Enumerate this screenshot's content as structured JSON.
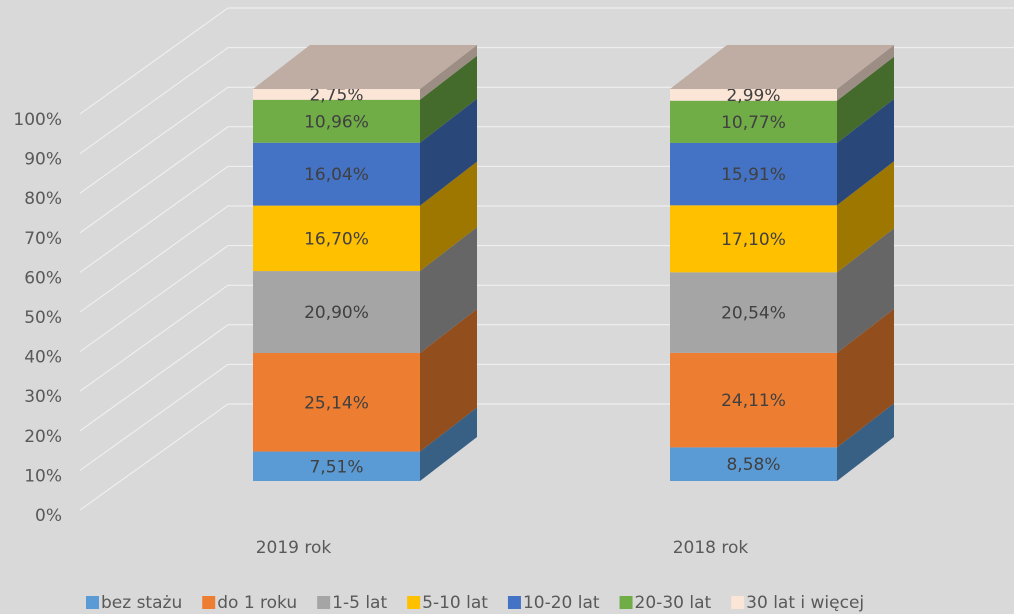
{
  "chart_data": {
    "type": "bar3d_stacked",
    "categories": [
      "2019 rok",
      "2018 rok"
    ],
    "series": [
      {
        "name": "bez stażu",
        "color": "#5b9bd5",
        "values": [
          7.51,
          8.58
        ],
        "value_labels": [
          "7,51%",
          "8,58%"
        ]
      },
      {
        "name": "do 1 roku",
        "color": "#ed7d31",
        "values": [
          25.14,
          24.11
        ],
        "value_labels": [
          "25,14%",
          "24,11%"
        ]
      },
      {
        "name": "1-5 lat",
        "color": "#a5a5a5",
        "values": [
          20.9,
          20.54
        ],
        "value_labels": [
          "20,90%",
          "20,54%"
        ]
      },
      {
        "name": "5-10 lat",
        "color": "#ffc000",
        "values": [
          16.7,
          17.1
        ],
        "value_labels": [
          "16,70%",
          "17,10%"
        ]
      },
      {
        "name": "10-20 lat",
        "color": "#4472c4",
        "values": [
          16.04,
          15.91
        ],
        "value_labels": [
          "16,04%",
          "15,91%"
        ]
      },
      {
        "name": "20-30 lat",
        "color": "#70ad47",
        "values": [
          10.96,
          10.77
        ],
        "value_labels": [
          "10,96%",
          "10,77%"
        ]
      },
      {
        "name": "30 lat i więcej",
        "color": "#fbe5d6",
        "values": [
          2.75,
          2.99
        ],
        "value_labels": [
          "2,75%",
          "2,99%"
        ]
      }
    ],
    "ylim": [
      0,
      100
    ],
    "yticks": [
      {
        "value": 0,
        "label": "0%"
      },
      {
        "value": 10,
        "label": "10%"
      },
      {
        "value": 20,
        "label": "20%"
      },
      {
        "value": 30,
        "label": "30%"
      },
      {
        "value": 40,
        "label": "40%"
      },
      {
        "value": 50,
        "label": "50%"
      },
      {
        "value": 60,
        "label": "60%"
      },
      {
        "value": 70,
        "label": "70%"
      },
      {
        "value": 80,
        "label": "80%"
      },
      {
        "value": 90,
        "label": "90%"
      },
      {
        "value": 100,
        "label": "100%"
      }
    ],
    "grid": true,
    "legend": "bottom"
  }
}
